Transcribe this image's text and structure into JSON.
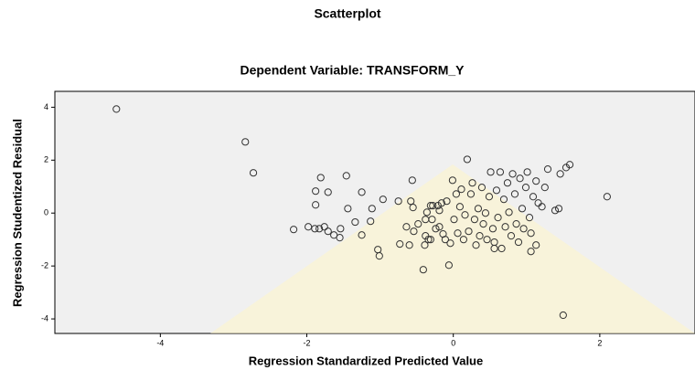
{
  "chart_data": {
    "type": "scatter",
    "title": "Scatterplot",
    "subtitle": "Dependent Variable: TRANSFORM_Y",
    "x_label": "Regression Standardized Predicted Value",
    "y_label": "Regression Studentized Residual",
    "color": "#333333",
    "xlim": [
      -5.44,
      3.3
    ],
    "ylim": [
      -4.55,
      4.6
    ],
    "xticks": [
      -4,
      -2,
      0,
      2
    ],
    "yticks": [
      -4,
      -2,
      0,
      2,
      4
    ],
    "x": [
      -4.6,
      -2.84,
      -2.73,
      -2.18,
      -1.98,
      -1.89,
      -1.83,
      -1.76,
      -1.71,
      -1.63,
      -1.55,
      -1.54,
      -1.88,
      -1.81,
      -1.71,
      -1.88,
      -1.46,
      -1.34,
      -1.25,
      -1.25,
      -1.44,
      -1.13,
      -1.11,
      -1.03,
      -1.01,
      -0.96,
      -0.75,
      -0.73,
      -0.64,
      -0.6,
      -0.56,
      -0.58,
      -0.55,
      -0.54,
      -0.48,
      -0.41,
      -0.39,
      -0.38,
      -0.36,
      -0.34,
      -0.31,
      -0.29,
      -0.28,
      -0.24,
      -0.21,
      -0.19,
      -0.16,
      -0.14,
      -0.11,
      -0.09,
      -0.06,
      -0.04,
      -0.01,
      0.01,
      0.04,
      0.06,
      0.09,
      0.11,
      0.14,
      0.16,
      0.19,
      0.21,
      0.24,
      0.26,
      0.29,
      0.31,
      0.34,
      0.36,
      0.39,
      0.41,
      0.44,
      0.46,
      0.49,
      0.51,
      0.54,
      0.56,
      0.59,
      0.61,
      0.64,
      0.66,
      0.69,
      0.71,
      0.74,
      0.76,
      0.79,
      0.81,
      0.84,
      0.86,
      0.89,
      0.91,
      0.94,
      0.96,
      0.99,
      1.01,
      1.04,
      1.06,
      1.09,
      1.13,
      1.16,
      1.21,
      1.25,
      1.29,
      1.39,
      1.44,
      1.46,
      1.5,
      1.54,
      1.59,
      2.1,
      -0.19,
      -0.31,
      -0.38,
      1.13,
      1.06,
      0.56
    ],
    "y": [
      3.93,
      2.69,
      1.52,
      -0.62,
      -0.52,
      -0.59,
      -0.59,
      -0.52,
      -0.69,
      -0.83,
      -0.93,
      -0.59,
      0.83,
      1.34,
      0.79,
      0.31,
      1.41,
      -0.34,
      -0.83,
      0.79,
      0.17,
      -0.31,
      0.17,
      -1.38,
      -1.62,
      0.52,
      0.45,
      -1.17,
      -0.52,
      -1.21,
      1.24,
      0.45,
      0.21,
      -0.69,
      -0.41,
      -2.14,
      -1.21,
      -0.86,
      0.03,
      -1.0,
      0.28,
      -0.24,
      0.28,
      -0.59,
      0.28,
      0.1,
      0.38,
      -0.79,
      -1.0,
      0.45,
      -1.97,
      -1.14,
      1.24,
      -0.24,
      0.72,
      -0.76,
      0.24,
      0.9,
      -1.0,
      -0.07,
      2.03,
      -0.69,
      0.72,
      1.14,
      -0.24,
      -1.21,
      0.17,
      -0.86,
      0.97,
      -0.41,
      0.0,
      -1.0,
      0.62,
      1.55,
      -0.59,
      -1.1,
      0.86,
      -0.17,
      1.55,
      -1.34,
      0.52,
      -0.52,
      1.14,
      0.03,
      -0.86,
      1.48,
      0.72,
      -0.41,
      -1.1,
      1.31,
      0.17,
      -0.59,
      0.97,
      1.55,
      -0.17,
      -0.76,
      0.62,
      1.21,
      0.38,
      0.24,
      0.97,
      1.66,
      0.1,
      0.17,
      1.48,
      -3.86,
      1.72,
      1.83,
      0.62,
      -0.52,
      -1.0,
      -0.24,
      -1.21,
      -1.45,
      -1.34
    ]
  }
}
